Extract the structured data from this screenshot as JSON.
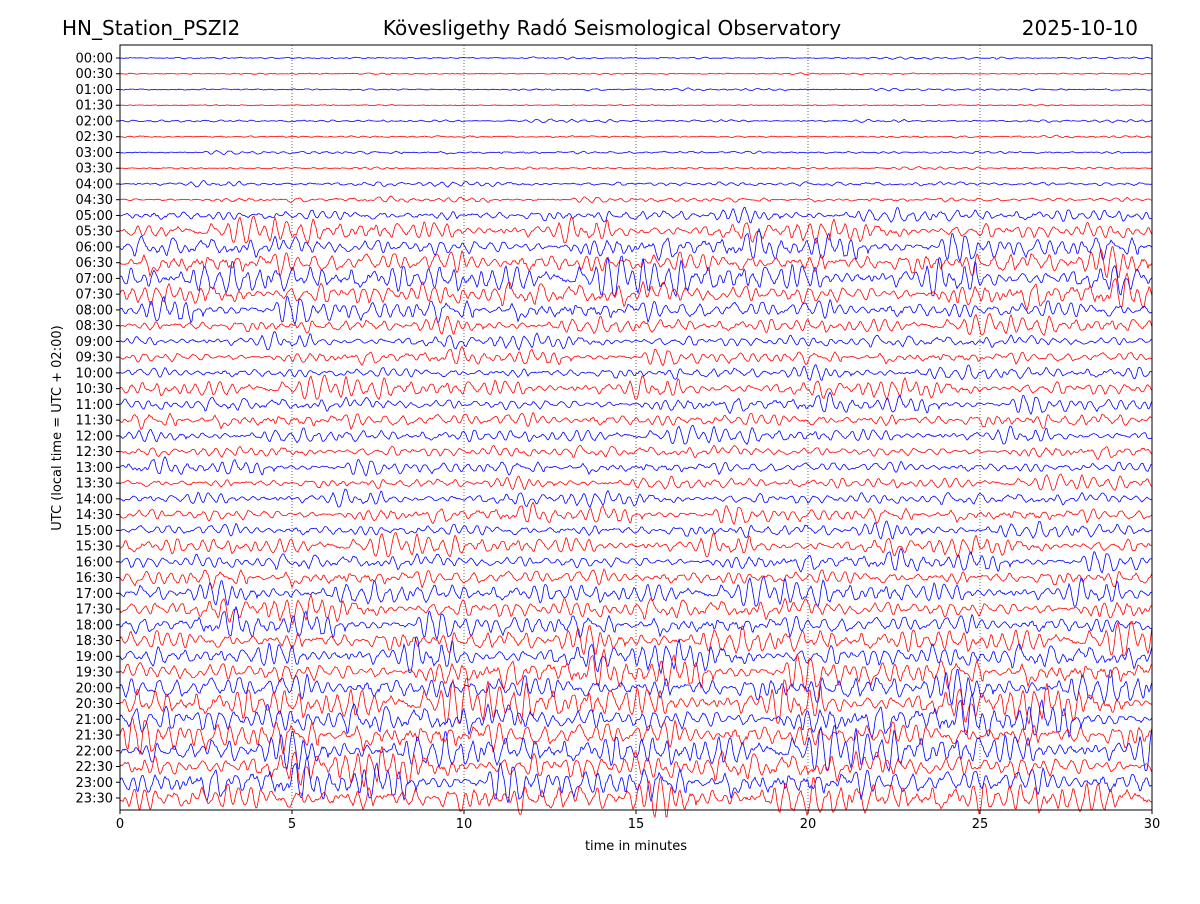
{
  "header": {
    "station": "HN_Station_PSZI2",
    "observatory": "Kövesligethy Radó Seismological Observatory",
    "date": "2025-10-10"
  },
  "chart_data": {
    "type": "line",
    "title": "Kövesligethy Radó Seismological Observatory",
    "xlabel": "time in minutes",
    "ylabel": "UTC (local time = UTC + 02:00)",
    "xlim": [
      0,
      30
    ],
    "x_ticks": [
      "0",
      "5",
      "10",
      "15",
      "20",
      "25",
      "30"
    ],
    "grid": "vertical dotted at x ticks",
    "colors": [
      "#0000ff",
      "#ff0000"
    ],
    "row_labels": [
      "00:00",
      "00:30",
      "01:00",
      "01:30",
      "02:00",
      "02:30",
      "03:00",
      "03:30",
      "04:00",
      "04:30",
      "05:00",
      "05:30",
      "06:00",
      "06:30",
      "07:00",
      "07:30",
      "08:00",
      "08:30",
      "09:00",
      "09:30",
      "10:00",
      "10:30",
      "11:00",
      "11:30",
      "12:00",
      "12:30",
      "13:00",
      "13:30",
      "14:00",
      "14:30",
      "15:00",
      "15:30",
      "16:00",
      "16:30",
      "17:00",
      "17:30",
      "18:00",
      "18:30",
      "19:00",
      "19:30",
      "20:00",
      "20:30",
      "21:00",
      "21:30",
      "22:00",
      "22:30",
      "23:00",
      "23:30"
    ],
    "relative_amplitude": [
      0.05,
      0.03,
      0.05,
      0.03,
      0.06,
      0.05,
      0.08,
      0.05,
      0.12,
      0.12,
      0.35,
      0.5,
      0.6,
      0.7,
      0.75,
      0.7,
      0.6,
      0.4,
      0.35,
      0.35,
      0.35,
      0.45,
      0.4,
      0.45,
      0.35,
      0.35,
      0.35,
      0.3,
      0.35,
      0.4,
      0.4,
      0.45,
      0.45,
      0.5,
      0.55,
      0.6,
      0.6,
      0.65,
      0.7,
      0.75,
      0.8,
      0.85,
      0.85,
      0.85,
      0.85,
      0.85,
      0.85,
      0.9
    ]
  }
}
